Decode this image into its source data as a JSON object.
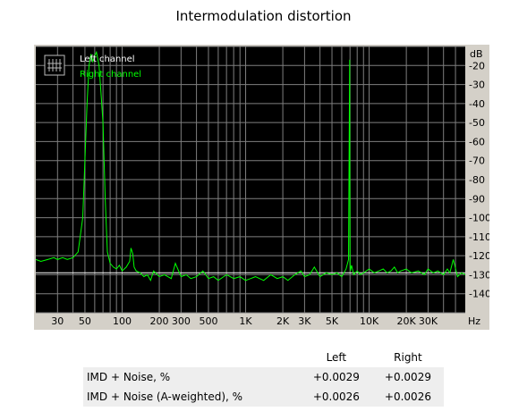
{
  "chart_data": {
    "type": "line",
    "title": "Intermodulation distortion",
    "x_scale": "log",
    "xlim": [
      20,
      60000
    ],
    "ylim": [
      -150,
      -10
    ],
    "x_unit": "Hz",
    "y_unit": "dB",
    "x_ticks": [
      {
        "value": 30,
        "label": "30"
      },
      {
        "value": 50,
        "label": "50"
      },
      {
        "value": 100,
        "label": "100"
      },
      {
        "value": 200,
        "label": "200"
      },
      {
        "value": 300,
        "label": "300"
      },
      {
        "value": 500,
        "label": "500"
      },
      {
        "value": 1000,
        "label": "1K"
      },
      {
        "value": 2000,
        "label": "2K"
      },
      {
        "value": 3000,
        "label": "3K"
      },
      {
        "value": 5000,
        "label": "5K"
      },
      {
        "value": 10000,
        "label": "10K"
      },
      {
        "value": 20000,
        "label": "20K"
      },
      {
        "value": 30000,
        "label": "30K"
      }
    ],
    "y_ticks": [
      -20,
      -30,
      -40,
      -50,
      -60,
      -70,
      -80,
      -90,
      -100,
      -110,
      -120,
      -130,
      -140
    ],
    "grid": true,
    "legend_position": "top-left",
    "background_color": "#000000",
    "grid_color": "#7f7f7f",
    "series": [
      {
        "name": "Left channel",
        "color": "#ffffff",
        "x": [
          20,
          5000,
          60000
        ],
        "y": [
          -129,
          -129,
          -129
        ]
      },
      {
        "name": "Right channel",
        "color": "#00ff00",
        "x": [
          20,
          22,
          25,
          28,
          30,
          33,
          36,
          40,
          44,
          48,
          50,
          52,
          54,
          56,
          58,
          60,
          62,
          65,
          68,
          70,
          73,
          76,
          80,
          85,
          90,
          95,
          100,
          108,
          115,
          118,
          122,
          125,
          130,
          140,
          150,
          160,
          170,
          180,
          200,
          220,
          250,
          270,
          300,
          330,
          360,
          400,
          450,
          500,
          550,
          600,
          700,
          800,
          900,
          1000,
          1100,
          1200,
          1400,
          1600,
          1800,
          2000,
          2200,
          2500,
          2800,
          3000,
          3300,
          3600,
          4000,
          4500,
          5000,
          5500,
          6000,
          6500,
          6800,
          6950,
          7000,
          7050,
          7200,
          7500,
          8000,
          8500,
          9000,
          10000,
          11000,
          12000,
          13000,
          14000,
          15000,
          16000,
          17000,
          18000,
          20000,
          22000,
          25000,
          28000,
          30000,
          33000,
          36000,
          40000,
          43000,
          45000,
          48000,
          52000,
          56000,
          60000
        ],
        "y": [
          -122,
          -123,
          -122,
          -121,
          -122,
          -121,
          -122,
          -121,
          -118,
          -100,
          -70,
          -40,
          -20,
          -14,
          -18,
          -15,
          -13,
          -20,
          -38,
          -50,
          -90,
          -118,
          -124,
          -126,
          -127,
          -125,
          -128,
          -126,
          -123,
          -116,
          -119,
          -126,
          -128,
          -129,
          -131,
          -130,
          -133,
          -128,
          -131,
          -130,
          -132,
          -124,
          -131,
          -130,
          -132,
          -131,
          -128,
          -132,
          -131,
          -133,
          -130,
          -132,
          -131,
          -133,
          -132,
          -131,
          -133,
          -130,
          -132,
          -131,
          -133,
          -130,
          -128,
          -131,
          -130,
          -126,
          -131,
          -129,
          -130,
          -129,
          -131,
          -127,
          -122,
          -17,
          -124,
          -128,
          -125,
          -130,
          -128,
          -130,
          -129,
          -127,
          -129,
          -128,
          -127,
          -129,
          -128,
          -126,
          -129,
          -128,
          -127,
          -129,
          -128,
          -130,
          -127,
          -129,
          -128,
          -130,
          -127,
          -129,
          -122,
          -131,
          -129,
          -130
        ]
      }
    ]
  },
  "results_table": {
    "header": {
      "label": "",
      "left": "Left",
      "right": "Right"
    },
    "rows": [
      {
        "label": "IMD + Noise, %",
        "left": "+0.0029",
        "right": "+0.0029"
      },
      {
        "label": "IMD + Noise (A-weighted), %",
        "left": "+0.0026",
        "right": "+0.0026"
      }
    ]
  }
}
